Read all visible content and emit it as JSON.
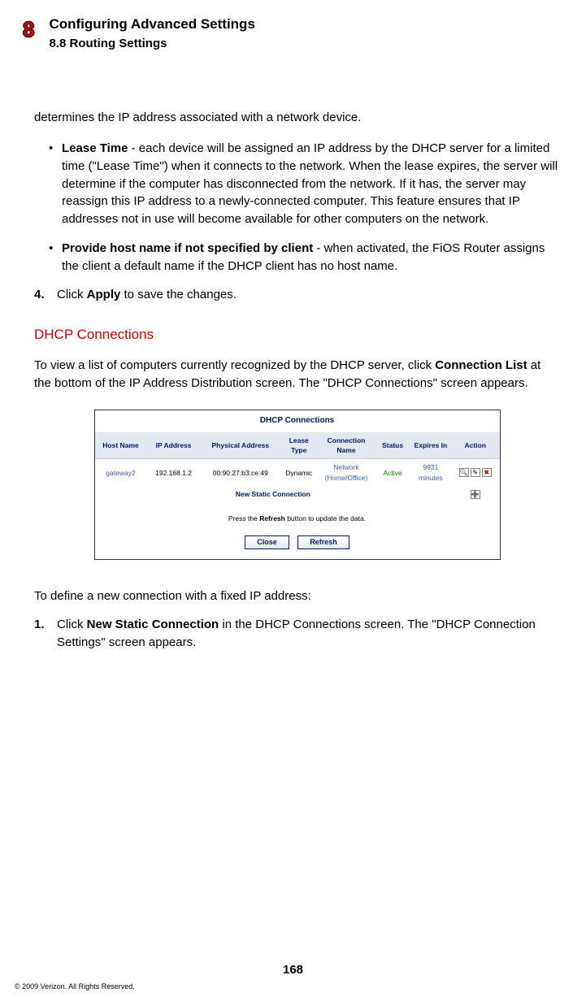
{
  "header": {
    "chapter_number": "8",
    "chapter_title": "Configuring Advanced Settings",
    "section_title": "8.8 Routing Settings"
  },
  "intro_fragment": "determines the IP address associated with a network device.",
  "bullets": [
    {
      "term": "Lease Time",
      "body": " - each device will be assigned an IP address by the DHCP server for a limited time (\"Lease Time\") when it connects to the network. When the lease expires, the server will determine if the computer has disconnected from the network. If it has, the server may reassign this IP address to a newly-connected computer. This feature ensures that IP addresses not in use will become available for other computers on the network."
    },
    {
      "term": "Provide host name if not specified by client",
      "body": " - when activated, the FiOS Router assigns the client a default name if the DHCP client has no host name."
    }
  ],
  "step4": {
    "num": "4.",
    "pre": "Click ",
    "bold": "Apply",
    "post": " to save the changes."
  },
  "subhead": "DHCP Connections",
  "conn_para": {
    "pre": "To view a list of computers currently recognized by the DHCP server, click ",
    "bold": "Connection List",
    "post": " at the bottom of the IP Address Distribution screen. The \"DHCP Connections\" screen appears."
  },
  "dhcp_panel": {
    "title": "DHCP Connections",
    "columns": [
      "Host Name",
      "IP Address",
      "Physical Address",
      "Lease Type",
      "Connection Name",
      "Status",
      "Expires In",
      "Action"
    ],
    "row": {
      "host_name": "gateway2",
      "ip": "192.168.1.2",
      "mac": "00:90:27:b3:ce:49",
      "lease_type": "Dynamic",
      "conn_name": "Network (Home/Office)",
      "status": "Active",
      "expires": "9931 minutes"
    },
    "new_static_label": "New Static Connection",
    "refresh_hint_pre": "Press the ",
    "refresh_hint_bold": "Refresh",
    "refresh_hint_post": " button to update the data.",
    "btn_close": "Close",
    "btn_refresh": "Refresh",
    "col_widths": [
      "56px",
      "58px",
      "86px",
      "40px",
      "62px",
      "38px",
      "44px",
      "52px"
    ],
    "colors": {
      "header_bg": "#e3e7ef",
      "title_color": "#001a66",
      "link_color": "#3b5caa",
      "status_color": "#008000",
      "border": "#333333"
    }
  },
  "define_para": "To define a new connection with a fixed IP address:",
  "step1": {
    "num": "1.",
    "pre": "Click ",
    "bold": "New Static Connection",
    "post": " in the DHCP Connections screen. The \"DHCP Connection Settings\" screen appears."
  },
  "page_number": "168",
  "copyright": "© 2009 Verizon. All Rights Reserved."
}
